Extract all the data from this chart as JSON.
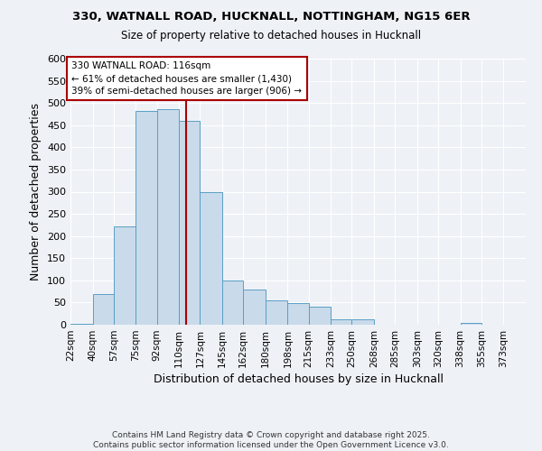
{
  "title1": "330, WATNALL ROAD, HUCKNALL, NOTTINGHAM, NG15 6ER",
  "title2": "Size of property relative to detached houses in Hucknall",
  "xlabel": "Distribution of detached houses by size in Hucknall",
  "ylabel": "Number of detached properties",
  "bin_labels": [
    "22sqm",
    "40sqm",
    "57sqm",
    "75sqm",
    "92sqm",
    "110sqm",
    "127sqm",
    "145sqm",
    "162sqm",
    "180sqm",
    "198sqm",
    "215sqm",
    "233sqm",
    "250sqm",
    "268sqm",
    "285sqm",
    "303sqm",
    "320sqm",
    "338sqm",
    "355sqm",
    "373sqm"
  ],
  "bar_values": [
    3,
    70,
    222,
    483,
    487,
    460,
    298,
    100,
    80,
    55,
    48,
    40,
    13,
    13,
    0,
    0,
    0,
    0,
    5,
    0,
    0
  ],
  "bin_edges": [
    22,
    40,
    57,
    75,
    92,
    110,
    127,
    145,
    162,
    180,
    198,
    215,
    233,
    250,
    268,
    285,
    303,
    320,
    338,
    355,
    373,
    391
  ],
  "property_size": 116,
  "bar_fill": "#c9daea",
  "bar_edge": "#5a9fc5",
  "vline_color": "#aa0000",
  "annotation_text": "330 WATNALL ROAD: 116sqm\n← 61% of detached houses are smaller (1,430)\n39% of semi-detached houses are larger (906) →",
  "annotation_box_edge": "#aa0000",
  "annotation_box_fill": "white",
  "background_color": "#eef2f7",
  "grid_color": "white",
  "ylim": [
    0,
    600
  ],
  "yticks": [
    0,
    50,
    100,
    150,
    200,
    250,
    300,
    350,
    400,
    450,
    500,
    550,
    600
  ],
  "footer": "Contains HM Land Registry data © Crown copyright and database right 2025.\nContains public sector information licensed under the Open Government Licence v3.0."
}
